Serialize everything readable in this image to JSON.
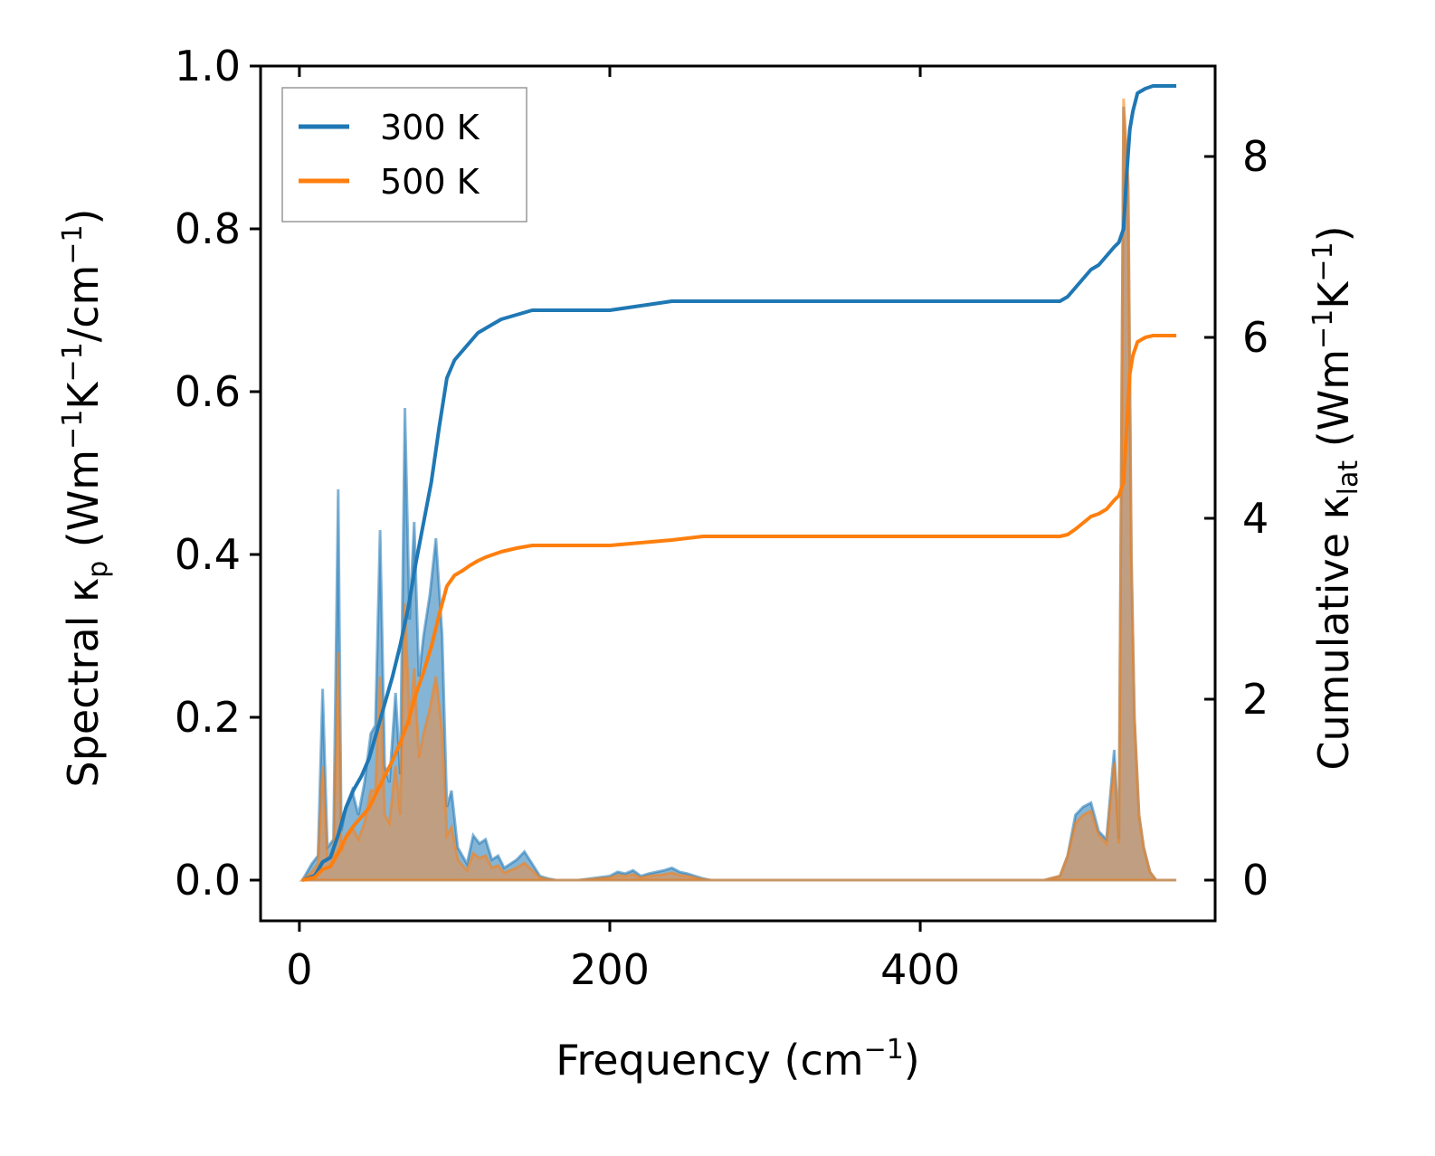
{
  "chart_data": {
    "type": "line",
    "title": "",
    "xlabel": "Frequency (cm",
    "xlabel_sup": "−1",
    "xlabel_end": ")",
    "ylabel_left": {
      "pre": "Spectral κ",
      "sub": "p",
      "mid1": " (Wm",
      "sup1": "−1",
      "mid2": "K",
      "sup2": "−1",
      "mid3": "/cm",
      "sup3": "−1",
      "end": ")"
    },
    "ylabel_right": {
      "pre": "Cumulative κ",
      "sub": "lat",
      "mid1": " (Wm",
      "sup1": "−1",
      "mid2": "K",
      "sup2": "−1",
      "end": ")"
    },
    "xlim": [
      -25,
      590
    ],
    "ylim_left": [
      -0.05,
      1.0
    ],
    "ylim_right": [
      -0.45,
      9.0
    ],
    "x_ticks": [
      0,
      200,
      400
    ],
    "x_tick_labels": [
      "0",
      "200",
      "400"
    ],
    "y_left_ticks": [
      0.0,
      0.2,
      0.4,
      0.6,
      0.8,
      1.0
    ],
    "y_left_tick_labels": [
      "0.0",
      "0.2",
      "0.4",
      "0.6",
      "0.8",
      "1.0"
    ],
    "y_right_ticks": [
      0,
      2,
      4,
      6,
      8
    ],
    "y_right_tick_labels": [
      "0",
      "2",
      "4",
      "6",
      "8"
    ],
    "legend": {
      "placement": "top-left",
      "entries": [
        "300 K",
        "500 K"
      ]
    },
    "colors": {
      "300 K": "#1f77b4",
      "500 K": "#ff7f0e",
      "fill_300": "#1f77b4",
      "fill_500": "#e8904a"
    },
    "spectral_series": [
      {
        "name": "300 K spectral",
        "axis": "left",
        "x": [
          2,
          8,
          12,
          15,
          18,
          22,
          25,
          27,
          30,
          34,
          38,
          42,
          46,
          49,
          52,
          55,
          58,
          62,
          65,
          68,
          71,
          74,
          77,
          80,
          84,
          88,
          92,
          95,
          98,
          102,
          105,
          108,
          112,
          116,
          120,
          124,
          128,
          132,
          136,
          140,
          145,
          150,
          155,
          160,
          165,
          170,
          180,
          200,
          205,
          210,
          215,
          220,
          225,
          230,
          235,
          240,
          245,
          250,
          255,
          260,
          265,
          270,
          280,
          300,
          400,
          480,
          490,
          495,
          500,
          505,
          510,
          515,
          520,
          525,
          528,
          531,
          534,
          536,
          538,
          541,
          544,
          548,
          552,
          556,
          560,
          565
        ],
        "y": [
          0.0,
          0.02,
          0.03,
          0.235,
          0.04,
          0.05,
          0.48,
          0.06,
          0.09,
          0.11,
          0.08,
          0.12,
          0.18,
          0.19,
          0.43,
          0.14,
          0.12,
          0.23,
          0.13,
          0.58,
          0.32,
          0.44,
          0.25,
          0.3,
          0.35,
          0.42,
          0.3,
          0.09,
          0.11,
          0.04,
          0.03,
          0.02,
          0.055,
          0.045,
          0.05,
          0.025,
          0.03,
          0.015,
          0.02,
          0.025,
          0.035,
          0.02,
          0.005,
          0.002,
          0.0,
          0.0,
          0.0,
          0.005,
          0.01,
          0.008,
          0.012,
          0.005,
          0.008,
          0.01,
          0.012,
          0.015,
          0.01,
          0.008,
          0.005,
          0.002,
          0.0,
          0.0,
          0.0,
          0.0,
          0.0,
          0.0,
          0.005,
          0.03,
          0.08,
          0.09,
          0.095,
          0.06,
          0.05,
          0.16,
          0.05,
          0.95,
          0.85,
          0.4,
          0.2,
          0.08,
          0.04,
          0.01,
          0.0,
          0.0,
          0.0,
          0.0
        ]
      },
      {
        "name": "500 K spectral",
        "axis": "left",
        "x": [
          2,
          8,
          12,
          15,
          18,
          22,
          25,
          27,
          30,
          34,
          38,
          42,
          46,
          49,
          52,
          55,
          58,
          62,
          65,
          68,
          71,
          74,
          77,
          80,
          84,
          88,
          92,
          95,
          98,
          102,
          105,
          108,
          112,
          116,
          120,
          124,
          128,
          132,
          136,
          140,
          145,
          150,
          155,
          160,
          165,
          170,
          180,
          200,
          205,
          210,
          215,
          220,
          225,
          230,
          235,
          240,
          245,
          250,
          255,
          260,
          265,
          270,
          280,
          300,
          400,
          480,
          490,
          495,
          500,
          505,
          510,
          515,
          520,
          525,
          528,
          531,
          534,
          536,
          538,
          541,
          544,
          548,
          552,
          556,
          560,
          565
        ],
        "y": [
          0.0,
          0.01,
          0.02,
          0.14,
          0.025,
          0.03,
          0.28,
          0.035,
          0.055,
          0.065,
          0.05,
          0.07,
          0.11,
          0.11,
          0.25,
          0.08,
          0.07,
          0.14,
          0.08,
          0.34,
          0.19,
          0.26,
          0.15,
          0.18,
          0.21,
          0.25,
          0.18,
          0.055,
          0.065,
          0.025,
          0.018,
          0.012,
          0.033,
          0.027,
          0.03,
          0.015,
          0.018,
          0.009,
          0.012,
          0.015,
          0.021,
          0.012,
          0.003,
          0.001,
          0.0,
          0.0,
          0.0,
          0.003,
          0.006,
          0.005,
          0.007,
          0.003,
          0.005,
          0.006,
          0.007,
          0.009,
          0.006,
          0.005,
          0.003,
          0.001,
          0.0,
          0.0,
          0.0,
          0.0,
          0.0,
          0.0,
          0.005,
          0.03,
          0.07,
          0.08,
          0.085,
          0.055,
          0.045,
          0.145,
          0.045,
          0.96,
          0.86,
          0.4,
          0.2,
          0.08,
          0.04,
          0.01,
          0.0,
          0.0,
          0.0,
          0.0
        ]
      }
    ],
    "cumulative_series": [
      {
        "name": "300 K",
        "axis": "right",
        "x": [
          2,
          10,
          15,
          20,
          25,
          30,
          35,
          40,
          45,
          50,
          55,
          60,
          65,
          70,
          75,
          80,
          85,
          90,
          95,
          100,
          105,
          110,
          115,
          120,
          125,
          130,
          140,
          150,
          160,
          170,
          200,
          220,
          240,
          260,
          300,
          400,
          490,
          495,
          500,
          505,
          510,
          515,
          520,
          525,
          528,
          531,
          533,
          535,
          537,
          540,
          545,
          550,
          556,
          560,
          565
        ],
        "y": [
          0.0,
          0.05,
          0.2,
          0.25,
          0.5,
          0.8,
          1.0,
          1.15,
          1.35,
          1.65,
          1.95,
          2.25,
          2.6,
          3.0,
          3.5,
          3.95,
          4.4,
          5.0,
          5.55,
          5.75,
          5.85,
          5.95,
          6.05,
          6.1,
          6.15,
          6.2,
          6.25,
          6.3,
          6.3,
          6.3,
          6.3,
          6.35,
          6.4,
          6.4,
          6.4,
          6.4,
          6.4,
          6.45,
          6.55,
          6.65,
          6.75,
          6.8,
          6.9,
          7.0,
          7.05,
          7.2,
          7.8,
          8.3,
          8.5,
          8.7,
          8.75,
          8.78,
          8.78,
          8.78,
          8.78
        ]
      },
      {
        "name": "500 K",
        "axis": "right",
        "x": [
          2,
          10,
          15,
          20,
          25,
          30,
          35,
          40,
          45,
          50,
          55,
          60,
          65,
          70,
          75,
          80,
          85,
          90,
          95,
          100,
          105,
          110,
          115,
          120,
          125,
          130,
          140,
          150,
          160,
          170,
          200,
          220,
          240,
          260,
          300,
          400,
          490,
          495,
          500,
          505,
          510,
          515,
          520,
          525,
          528,
          531,
          533,
          535,
          537,
          540,
          545,
          550,
          556,
          560,
          565
        ],
        "y": [
          0.0,
          0.03,
          0.12,
          0.15,
          0.3,
          0.47,
          0.6,
          0.7,
          0.8,
          0.98,
          1.15,
          1.32,
          1.52,
          1.75,
          2.05,
          2.3,
          2.58,
          2.93,
          3.25,
          3.37,
          3.42,
          3.48,
          3.53,
          3.57,
          3.6,
          3.63,
          3.67,
          3.7,
          3.7,
          3.7,
          3.7,
          3.73,
          3.76,
          3.8,
          3.8,
          3.8,
          3.8,
          3.82,
          3.88,
          3.95,
          4.02,
          4.05,
          4.1,
          4.2,
          4.25,
          4.4,
          5.0,
          5.6,
          5.8,
          5.95,
          6.0,
          6.02,
          6.02,
          6.02,
          6.02
        ]
      }
    ]
  }
}
